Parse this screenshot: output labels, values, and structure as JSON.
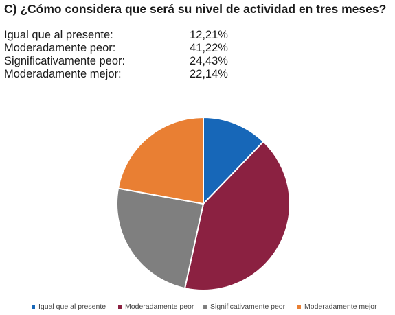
{
  "title": "C) ¿Cómo considera que será su nivel de actividad en tres meses?",
  "stats": [
    {
      "label": "Igual que al presente:",
      "value": "12,21%"
    },
    {
      "label": "Moderadamente peor:",
      "value": "41,22%"
    },
    {
      "label": "Significativamente peor:",
      "value": "24,43%"
    },
    {
      "label": "Moderadamente mejor:",
      "value": "22,14%"
    }
  ],
  "chart_data": {
    "type": "pie",
    "categories": [
      "Igual que al presente",
      "Moderadamente peor",
      "Significativamente peor",
      "Moderadamente mejor"
    ],
    "values": [
      12.21,
      41.22,
      24.43,
      22.14
    ],
    "colors": [
      "#1767b8",
      "#8b2141",
      "#7f7f7f",
      "#e97f33"
    ],
    "start": "12 o'clock, clockwise",
    "legend_position": "bottom"
  }
}
